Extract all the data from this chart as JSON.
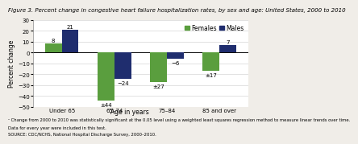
{
  "title": "Figure 3. Percent change in congestive heart failure hospitalization rates, by sex and age: United States, 2000 to 2010",
  "xlabel": "Age in years",
  "ylabel": "Percent change",
  "categories": [
    "Under 65",
    "65–74",
    "75–84",
    "85 and over"
  ],
  "females": [
    8,
    -44,
    -27,
    -17
  ],
  "males": [
    21,
    -24,
    -6,
    7
  ],
  "female_labels": [
    "8",
    "±44",
    "±27",
    "±17"
  ],
  "male_labels": [
    "21",
    "−24",
    "−6",
    "7"
  ],
  "female_color": "#5a9e3e",
  "male_color": "#1f2d6e",
  "ylim": [
    -50,
    30
  ],
  "yticks": [
    -50,
    -40,
    -30,
    -20,
    -10,
    0,
    10,
    20,
    30
  ],
  "footnote1": "¹ Change from 2000 to 2010 was statistically significant at the 0.05 level using a weighted least squares regression method to measure linear trends over time.",
  "footnote2": "Data for every year were included in this test.",
  "footnote3": "SOURCE: CDC/NCHS, National Hospital Discharge Survey, 2000–2010.",
  "background_color": "#f0ede8",
  "plot_bg_color": "#ffffff",
  "title_fontsize": 5.0,
  "axis_fontsize": 5.5,
  "tick_fontsize": 5.0,
  "label_fontsize": 5.0,
  "legend_fontsize": 5.5,
  "footnote_fontsize": 3.8
}
